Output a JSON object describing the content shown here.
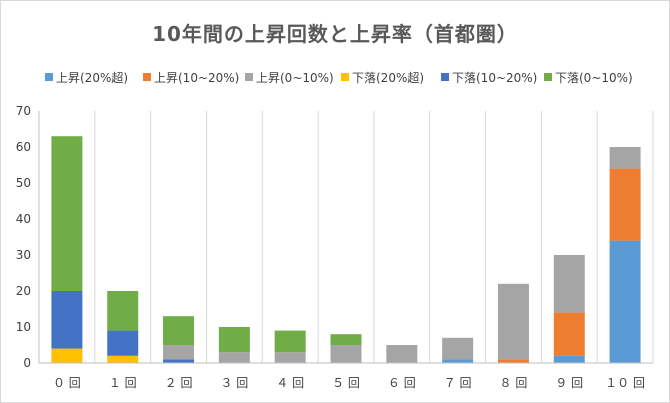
{
  "chart_data": {
    "type": "bar",
    "stacked": true,
    "title": "10年間の上昇回数と上昇率（首都圏）",
    "categories": [
      "０ 回",
      "１ 回",
      "２ 回",
      "３ 回",
      "４ 回",
      "５ 回",
      "６ 回",
      "７ 回",
      "８ 回",
      "９ 回",
      "１０ 回"
    ],
    "ylim": [
      0,
      70
    ],
    "yticks": [
      0,
      10,
      20,
      30,
      40,
      50,
      60,
      70
    ],
    "grid": "vertical category separators",
    "legend_position": "top",
    "series": [
      {
        "name": "下落(20%超)",
        "color": "#FFC000",
        "values": [
          4,
          2,
          0,
          0,
          0,
          0,
          0,
          0,
          0,
          0,
          0
        ]
      },
      {
        "name": "下落(10~20%)",
        "color": "#4472C4",
        "values": [
          16,
          7,
          1,
          0,
          0,
          0,
          0,
          0,
          0,
          0,
          0
        ]
      },
      {
        "name": "上昇(20%超)",
        "color": "#5B9BD5",
        "values": [
          0,
          0,
          0,
          0,
          0,
          0,
          0,
          1,
          0,
          2,
          34
        ]
      },
      {
        "name": "上昇(10~20%)",
        "color": "#ED7D31",
        "values": [
          0,
          0,
          0,
          0,
          0,
          0,
          0,
          0,
          1,
          12,
          20
        ]
      },
      {
        "name": "上昇(0~10%)",
        "color": "#A5A5A5",
        "values": [
          0,
          0,
          4,
          3,
          3,
          5,
          5,
          6,
          21,
          16,
          6
        ]
      },
      {
        "name": "下落(0~10%)",
        "color": "#70AD47",
        "values": [
          43,
          11,
          8,
          7,
          6,
          3,
          0,
          0,
          0,
          0,
          0
        ]
      }
    ],
    "legend_order": [
      "上昇(20%超)",
      "上昇(10~20%)",
      "上昇(0~10%)",
      "下落(20%超)",
      "下落(10~20%)",
      "下落(0~10%)"
    ]
  }
}
